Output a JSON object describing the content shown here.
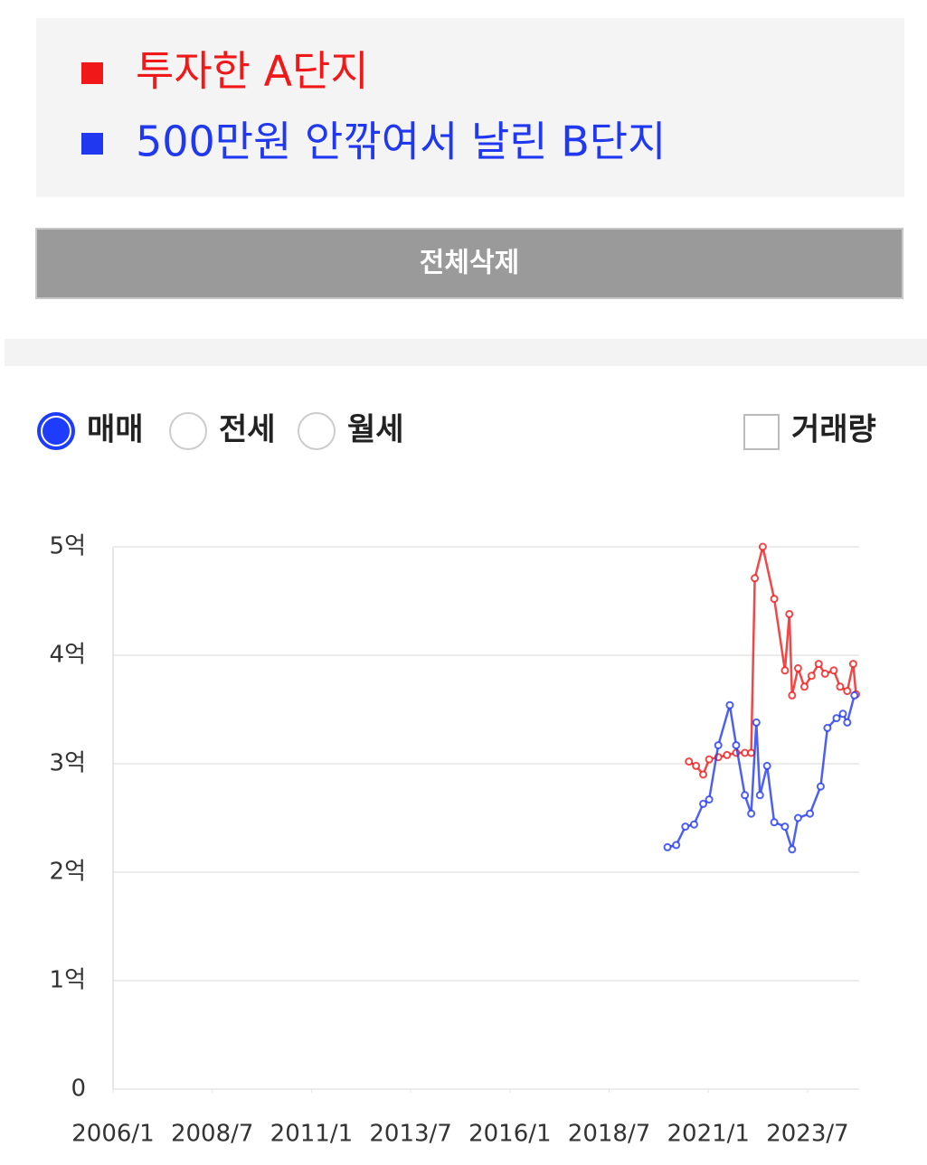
{
  "delete_button": {
    "label": "전체삭제"
  },
  "radio_options": [
    {
      "label": "매매",
      "selected": true
    },
    {
      "label": "전세",
      "selected": false
    },
    {
      "label": "월세",
      "selected": false
    }
  ],
  "volume_checkbox": {
    "label": "거래량",
    "checked": false
  },
  "chart_data": {
    "type": "line",
    "series": [
      {
        "name": "투자한 A단지",
        "color": "#f01818",
        "x": [
          2020.51,
          2020.69,
          2020.87,
          2021.02,
          2021.25,
          2021.47,
          2021.7,
          2021.92,
          2022.08,
          2022.17,
          2022.37,
          2022.66,
          2022.93,
          2023.04,
          2023.11,
          2023.26,
          2023.42,
          2023.6,
          2023.78,
          2023.94,
          2024.16,
          2024.32,
          2024.5,
          2024.65,
          2024.72
        ],
        "values": [
          3.02,
          2.98,
          2.9,
          3.04,
          3.06,
          3.08,
          3.1,
          3.1,
          3.1,
          4.71,
          5.0,
          4.52,
          3.86,
          4.38,
          3.63,
          3.88,
          3.71,
          3.81,
          3.92,
          3.83,
          3.86,
          3.71,
          3.67,
          3.92,
          3.64
        ]
      },
      {
        "name": "500만원 안깎여서 날린 B단지",
        "color": "#2038f0",
        "x": [
          2019.97,
          2020.19,
          2020.42,
          2020.64,
          2020.87,
          2021.02,
          2021.25,
          2021.54,
          2021.7,
          2021.92,
          2022.08,
          2022.21,
          2022.3,
          2022.48,
          2022.66,
          2022.93,
          2023.11,
          2023.26,
          2023.56,
          2023.83,
          2024.0,
          2024.23,
          2024.39,
          2024.5,
          2024.68
        ],
        "values": [
          2.23,
          2.25,
          2.42,
          2.44,
          2.63,
          2.67,
          3.17,
          3.54,
          3.17,
          2.71,
          2.54,
          3.38,
          2.71,
          2.98,
          2.46,
          2.42,
          2.21,
          2.5,
          2.54,
          2.79,
          3.33,
          3.42,
          3.46,
          3.38,
          3.63
        ]
      }
    ],
    "xlim": [
      2006.0,
      2024.8
    ],
    "xticks": [
      {
        "value": 2006.0,
        "label": "2006/1"
      },
      {
        "value": 2008.5,
        "label": "2008/7"
      },
      {
        "value": 2011.0,
        "label": "2011/1"
      },
      {
        "value": 2013.5,
        "label": "2013/7"
      },
      {
        "value": 2016.0,
        "label": "2016/1"
      },
      {
        "value": 2018.5,
        "label": "2018/7"
      },
      {
        "value": 2021.0,
        "label": "2021/1"
      },
      {
        "value": 2023.5,
        "label": "2023/7"
      }
    ],
    "ylim": [
      0,
      5
    ],
    "yticks": [
      0,
      {
        "value": 1,
        "label": "1억"
      },
      {
        "value": 2,
        "label": "2억"
      },
      {
        "value": 3,
        "label": "3억"
      },
      {
        "value": 4,
        "label": "4억"
      },
      {
        "value": 5,
        "label": "5억"
      }
    ],
    "grid": true
  }
}
